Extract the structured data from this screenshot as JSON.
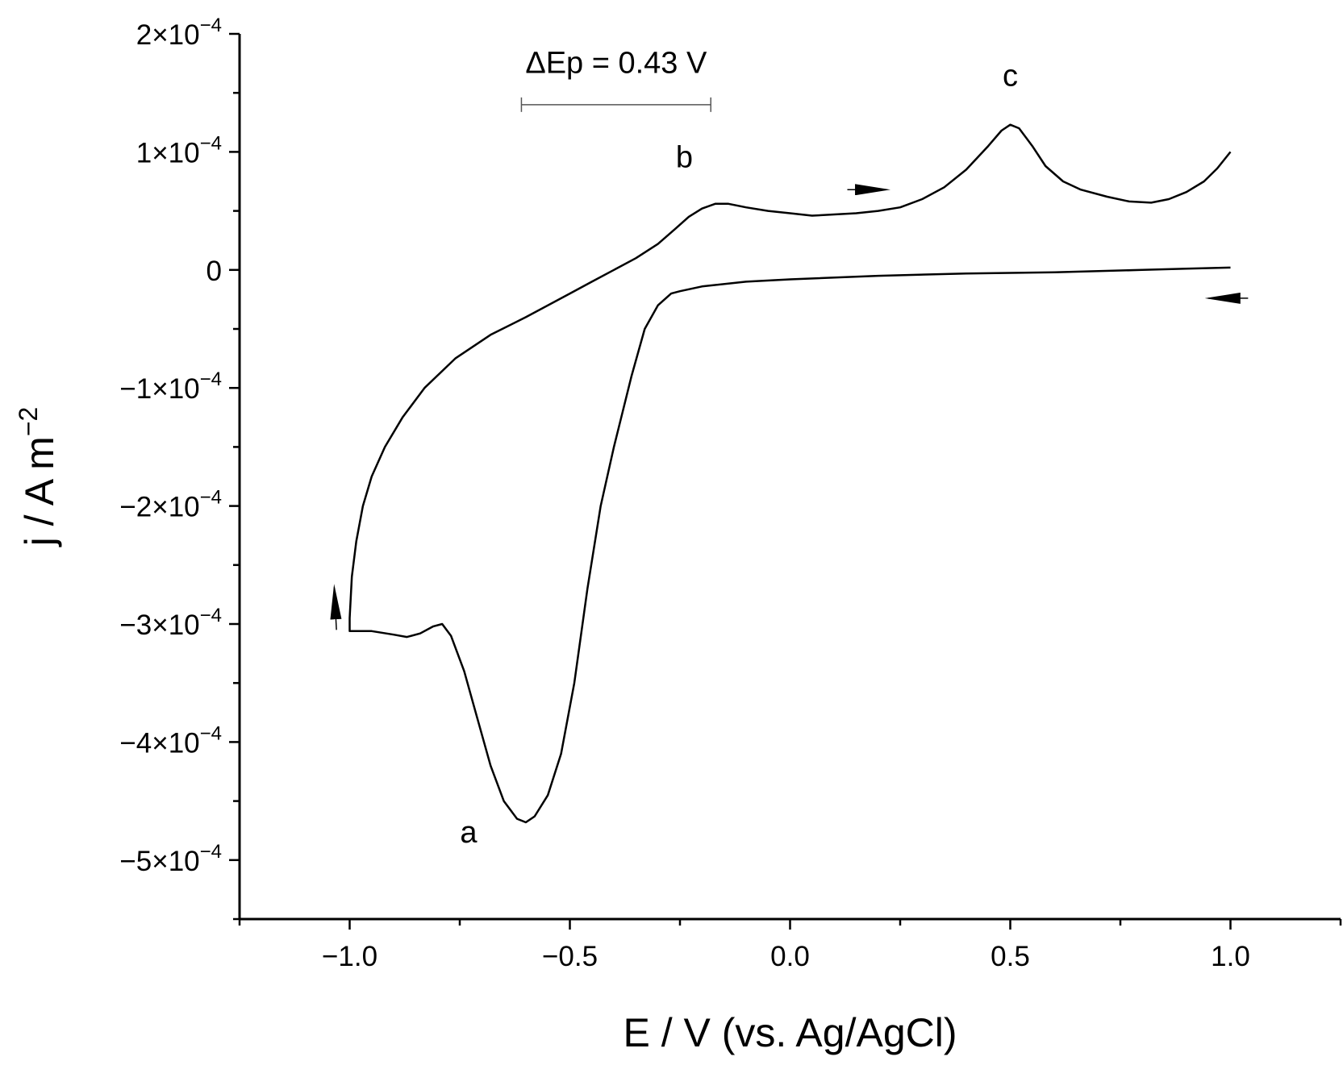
{
  "chart_data": {
    "type": "line",
    "xlabel": "E / V (vs. Ag/AgCl)",
    "ylabel": {
      "main": "j / A m",
      "exponent": "−2"
    },
    "xlim": [
      -1.25,
      1.25
    ],
    "ylim": [
      -0.00055,
      0.0002
    ],
    "x_ticks": [
      {
        "value": -1.0,
        "label": "−1.0"
      },
      {
        "value": -0.5,
        "label": "−0.5"
      },
      {
        "value": 0.0,
        "label": "0.0"
      },
      {
        "value": 0.5,
        "label": "0.5"
      },
      {
        "value": 1.0,
        "label": "1.0"
      }
    ],
    "x_minor_ticks": [
      -1.25,
      -0.75,
      -0.25,
      0.25,
      0.75,
      1.25
    ],
    "y_ticks": [
      {
        "value": 0.0002,
        "mant": "2×10",
        "exp": "−4"
      },
      {
        "value": 0.0001,
        "mant": "1×10",
        "exp": "−4"
      },
      {
        "value": 0,
        "mant": "0",
        "exp": ""
      },
      {
        "value": -0.0001,
        "mant": "−1×10",
        "exp": "−4"
      },
      {
        "value": -0.0002,
        "mant": "−2×10",
        "exp": "−4"
      },
      {
        "value": -0.0003,
        "mant": "−3×10",
        "exp": "−4"
      },
      {
        "value": -0.0004,
        "mant": "−4×10",
        "exp": "−4"
      },
      {
        "value": -0.0005,
        "mant": "−5×10",
        "exp": "−4"
      }
    ],
    "y_minor_ticks": [
      0.00015,
      5e-05,
      -5e-05,
      -0.00015,
      -0.00025,
      -0.00035,
      -0.00045,
      -0.00055
    ],
    "grid": false,
    "legend": "none",
    "line_color": "#000000",
    "series": [
      {
        "points": [
          [
            1.0,
            2e-06
          ],
          [
            0.9,
            1e-06
          ],
          [
            0.8,
            0.0
          ],
          [
            0.6,
            -2e-06
          ],
          [
            0.4,
            -3e-06
          ],
          [
            0.2,
            -5e-06
          ],
          [
            0.0,
            -8e-06
          ],
          [
            -0.1,
            -1e-05
          ],
          [
            -0.2,
            -1.4e-05
          ],
          [
            -0.25,
            -1.8e-05
          ],
          [
            -0.27,
            -2e-05
          ],
          [
            -0.3,
            -3e-05
          ],
          [
            -0.33,
            -5e-05
          ],
          [
            -0.36,
            -9e-05
          ],
          [
            -0.38,
            -0.00012
          ],
          [
            -0.4,
            -0.00015
          ],
          [
            -0.43,
            -0.0002
          ],
          [
            -0.46,
            -0.00027
          ],
          [
            -0.49,
            -0.00035
          ],
          [
            -0.52,
            -0.00041
          ],
          [
            -0.55,
            -0.000445
          ],
          [
            -0.58,
            -0.000463
          ],
          [
            -0.6,
            -0.000468
          ],
          [
            -0.62,
            -0.000465
          ],
          [
            -0.65,
            -0.00045
          ],
          [
            -0.68,
            -0.00042
          ],
          [
            -0.71,
            -0.00038
          ],
          [
            -0.74,
            -0.00034
          ],
          [
            -0.77,
            -0.00031
          ],
          [
            -0.79,
            -0.0003
          ],
          [
            -0.81,
            -0.000302
          ],
          [
            -0.84,
            -0.000308
          ],
          [
            -0.87,
            -0.000311
          ],
          [
            -0.9,
            -0.000309
          ],
          [
            -0.95,
            -0.000306
          ],
          [
            -1.0,
            -0.000306
          ],
          [
            -1.0,
            -0.000295
          ],
          [
            -0.995,
            -0.00026
          ],
          [
            -0.985,
            -0.00023
          ],
          [
            -0.97,
            -0.0002
          ],
          [
            -0.95,
            -0.000175
          ],
          [
            -0.92,
            -0.00015
          ],
          [
            -0.88,
            -0.000125
          ],
          [
            -0.83,
            -0.0001
          ],
          [
            -0.76,
            -7.5e-05
          ],
          [
            -0.68,
            -5.5e-05
          ],
          [
            -0.6,
            -4e-05
          ],
          [
            -0.5,
            -2e-05
          ],
          [
            -0.45,
            -1e-05
          ],
          [
            -0.4,
            0.0
          ],
          [
            -0.35,
            1e-05
          ],
          [
            -0.3,
            2.2e-05
          ],
          [
            -0.26,
            3.5e-05
          ],
          [
            -0.23,
            4.5e-05
          ],
          [
            -0.2,
            5.2e-05
          ],
          [
            -0.17,
            5.6e-05
          ],
          [
            -0.14,
            5.6e-05
          ],
          [
            -0.1,
            5.3e-05
          ],
          [
            -0.05,
            5e-05
          ],
          [
            0.0,
            4.8e-05
          ],
          [
            0.05,
            4.6e-05
          ],
          [
            0.1,
            4.7e-05
          ],
          [
            0.15,
            4.8e-05
          ],
          [
            0.2,
            5e-05
          ],
          [
            0.25,
            5.3e-05
          ],
          [
            0.3,
            6e-05
          ],
          [
            0.35,
            7e-05
          ],
          [
            0.4,
            8.5e-05
          ],
          [
            0.45,
            0.000105
          ],
          [
            0.48,
            0.000118
          ],
          [
            0.5,
            0.000123
          ],
          [
            0.52,
            0.00012
          ],
          [
            0.55,
            0.000105
          ],
          [
            0.58,
            8.8e-05
          ],
          [
            0.62,
            7.5e-05
          ],
          [
            0.66,
            6.8e-05
          ],
          [
            0.72,
            6.2e-05
          ],
          [
            0.77,
            5.8e-05
          ],
          [
            0.82,
            5.7e-05
          ],
          [
            0.86,
            6e-05
          ],
          [
            0.9,
            6.6e-05
          ],
          [
            0.94,
            7.5e-05
          ],
          [
            0.97,
            8.6e-05
          ],
          [
            1.0,
            0.0001
          ]
        ]
      }
    ],
    "annotations": [
      {
        "text": "a",
        "x": -0.73,
        "y": -0.000485
      },
      {
        "text": "b",
        "x": -0.24,
        "y": 8.7e-05
      },
      {
        "text": "c",
        "x": 0.5,
        "y": 0.000156
      }
    ],
    "delta_ep": {
      "text": "ΔEp = 0.43 V",
      "x_from": -0.61,
      "x_to": -0.18,
      "y": 0.00014,
      "label_y": 0.000167
    },
    "direction_arrows": [
      {
        "from": [
          0.13,
          6.8e-05
        ],
        "to": [
          0.22,
          6.8e-05
        ]
      },
      {
        "from": [
          1.04,
          -2.4e-05
        ],
        "to": [
          0.95,
          -2.4e-05
        ]
      },
      {
        "from": [
          -1.03,
          -0.000305
        ],
        "to": [
          -1.035,
          -0.000269
        ]
      }
    ]
  }
}
